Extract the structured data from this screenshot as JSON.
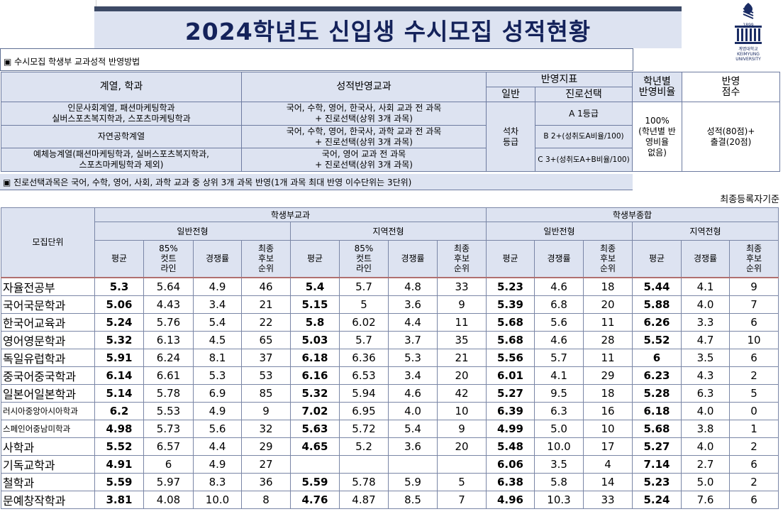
{
  "title": "2024학년도 신입생 수시모집 성적현황",
  "logo": {
    "year": "1899",
    "name_ko": "계명대학교",
    "name_en_1": "KEIMYUNG",
    "name_en_2": "UNIVERSITY"
  },
  "method_section_title": "▣ 수시모집 학생부 교과성적 반영방법",
  "method_table": {
    "headers": {
      "dept": "계열, 학과",
      "subjects": "성적반영교과",
      "index": "반영지표",
      "index_general": "일반",
      "index_career": "진로선택",
      "year_ratio_1": "학년별",
      "year_ratio_2": "반영비율",
      "score_1": "반영",
      "score_2": "점수"
    },
    "rows": [
      {
        "dept_1": "인문사회계열, 패션마케팅학과",
        "dept_2": "실버스포츠복지학과, 스포츠마케팅학과",
        "subj_1": "국어, 수학, 영어, 한국사, 사회 교과 전 과목",
        "subj_2": "+ 진로선택(상위 3개 과목)"
      },
      {
        "dept_1": "자연공학계열",
        "dept_2": "",
        "subj_1": "국어, 수학, 영어, 한국사, 과학 교과 전 과목",
        "subj_2": "+ 진로선택(상위 3개 과목)"
      },
      {
        "dept_1": "예체능계열(패션마케팅학과, 실버스포츠복지학과,",
        "dept_2": "스포츠마케팅학과 제외)",
        "subj_1": "국어, 영어 교과 전 과목",
        "subj_2": "+  진로선택(상위 3개 과목)"
      }
    ],
    "general_1": "석차",
    "general_2": "등급",
    "career": [
      "A 1등급",
      "B 2+(성취도A비율/100)",
      "C 3+(성취도A+B비율/100)"
    ],
    "ratio": [
      "100%",
      "(학년별 반",
      "영비율",
      "없음)"
    ],
    "score": [
      "성적(80점)+",
      "출결(20점)"
    ]
  },
  "career_note": "▣ 진로선택과목은 국어, 수학, 영어, 사회, 과학 교과 중 상위 3개 과목 반영(1개 과목 최대 반영 이수단위는 3단위)",
  "basis": "최종등록자기준",
  "data_table": {
    "unit_header": "모집단위",
    "group_1": "학생부교과",
    "group_2": "학생부종합",
    "sub_general": "일반전형",
    "sub_regional": "지역전형",
    "col_avg": "평균",
    "col_cut_1": "85%",
    "col_cut_2": "컷트",
    "col_cut_3": "라인",
    "col_comp": "경쟁률",
    "col_rank_1": "최종",
    "col_rank_2": "후보",
    "col_rank_3": "순위",
    "rows": [
      [
        "자율전공부",
        "5.3",
        "5.64",
        "4.9",
        "46",
        "5.4",
        "5.7",
        "4.8",
        "33",
        "5.23",
        "4.6",
        "18",
        "5.44",
        "4.1",
        "9"
      ],
      [
        "국어국문학과",
        "5.06",
        "4.43",
        "3.4",
        "21",
        "5.15",
        "5",
        "3.6",
        "9",
        "5.39",
        "6.8",
        "20",
        "5.88",
        "4.0",
        "7"
      ],
      [
        "한국어교육과",
        "5.24",
        "5.76",
        "5.4",
        "22",
        "5.8",
        "6.02",
        "4.4",
        "11",
        "5.68",
        "5.6",
        "11",
        "6.26",
        "3.3",
        "6"
      ],
      [
        "영어영문학과",
        "5.32",
        "6.13",
        "4.5",
        "65",
        "5.03",
        "5.7",
        "3.7",
        "35",
        "5.68",
        "4.6",
        "28",
        "5.52",
        "4.7",
        "10"
      ],
      [
        "독일유럽학과",
        "5.91",
        "6.24",
        "8.1",
        "37",
        "6.18",
        "6.36",
        "5.3",
        "21",
        "5.56",
        "5.7",
        "11",
        "6",
        "3.5",
        "6"
      ],
      [
        "중국어중국학과",
        "6.14",
        "6.61",
        "5.3",
        "53",
        "6.16",
        "6.53",
        "3.4",
        "20",
        "6.01",
        "4.1",
        "29",
        "6.23",
        "4.3",
        "2"
      ],
      [
        "일본어일본학과",
        "5.14",
        "5.78",
        "6.9",
        "85",
        "5.32",
        "5.94",
        "4.6",
        "42",
        "5.27",
        "9.5",
        "18",
        "5.28",
        "6.3",
        "5"
      ],
      [
        "러시아중앙아시아학과",
        "6.2",
        "5.53",
        "4.9",
        "9",
        "7.02",
        "6.95",
        "4.0",
        "10",
        "6.39",
        "6.3",
        "16",
        "6.18",
        "4.0",
        "0"
      ],
      [
        "스페인어중남미학과",
        "4.98",
        "5.73",
        "5.6",
        "32",
        "5.63",
        "5.72",
        "5.4",
        "9",
        "4.99",
        "5.0",
        "10",
        "5.68",
        "3.8",
        "1"
      ],
      [
        "사학과",
        "5.52",
        "6.57",
        "4.4",
        "29",
        "4.65",
        "5.2",
        "3.6",
        "20",
        "5.48",
        "10.0",
        "17",
        "5.27",
        "4.0",
        "2"
      ],
      [
        "기독교학과",
        "4.91",
        "6",
        "4.9",
        "27",
        "",
        "",
        "",
        "",
        "6.06",
        "3.5",
        "4",
        "7.14",
        "2.7",
        "6"
      ],
      [
        "철학과",
        "5.59",
        "5.97",
        "8.3",
        "36",
        "5.59",
        "5.78",
        "5.9",
        "5",
        "6.38",
        "5.8",
        "14",
        "5.23",
        "5.0",
        "2"
      ],
      [
        "문예창작학과",
        "3.81",
        "4.08",
        "10.0",
        "8",
        "4.76",
        "4.87",
        "8.5",
        "7",
        "4.96",
        "10.3",
        "33",
        "5.24",
        "7.6",
        "6"
      ]
    ]
  },
  "colors": {
    "header_fill": "#dde3f1",
    "title_text": "#14225a",
    "title_rule": "#3d4a66",
    "logo": "#1a2c64"
  }
}
